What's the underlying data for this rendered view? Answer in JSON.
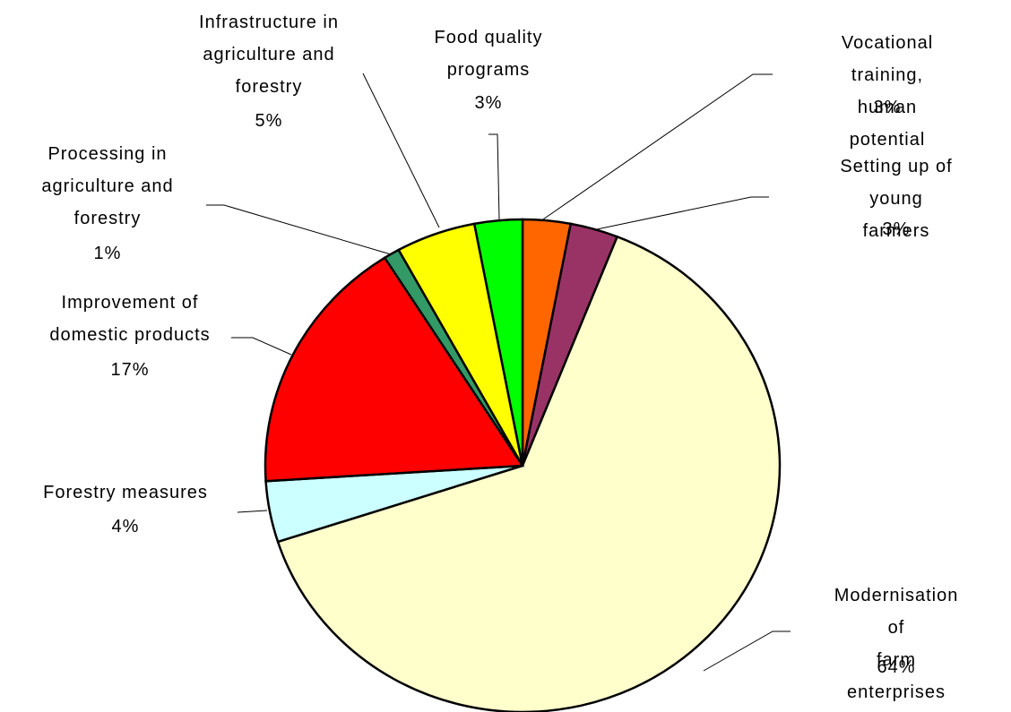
{
  "chart_data": {
    "type": "pie",
    "categories": [
      "Vocational training,\nhuman potential",
      "Setting up of young\nfarmers",
      "Modernisation of\nfarm enterprises",
      "Forestry measures",
      "Improvement  of\ndomestic products",
      "Processing in\nagriculture and\nforestry",
      "Infrastructure in\nagriculture and\nforestry",
      "Food quality\nprograms"
    ],
    "values": [
      3,
      3,
      64,
      4,
      17,
      1,
      5,
      3
    ],
    "value_labels": [
      "3%",
      "3%",
      "64%",
      "4%",
      "17%",
      "1%",
      "5%",
      "3%"
    ],
    "colors": [
      "#ff6600",
      "#993366",
      "#ffffcc",
      "#ccffff",
      "#ff0000",
      "#339966",
      "#ffff00",
      "#00ff00"
    ]
  }
}
